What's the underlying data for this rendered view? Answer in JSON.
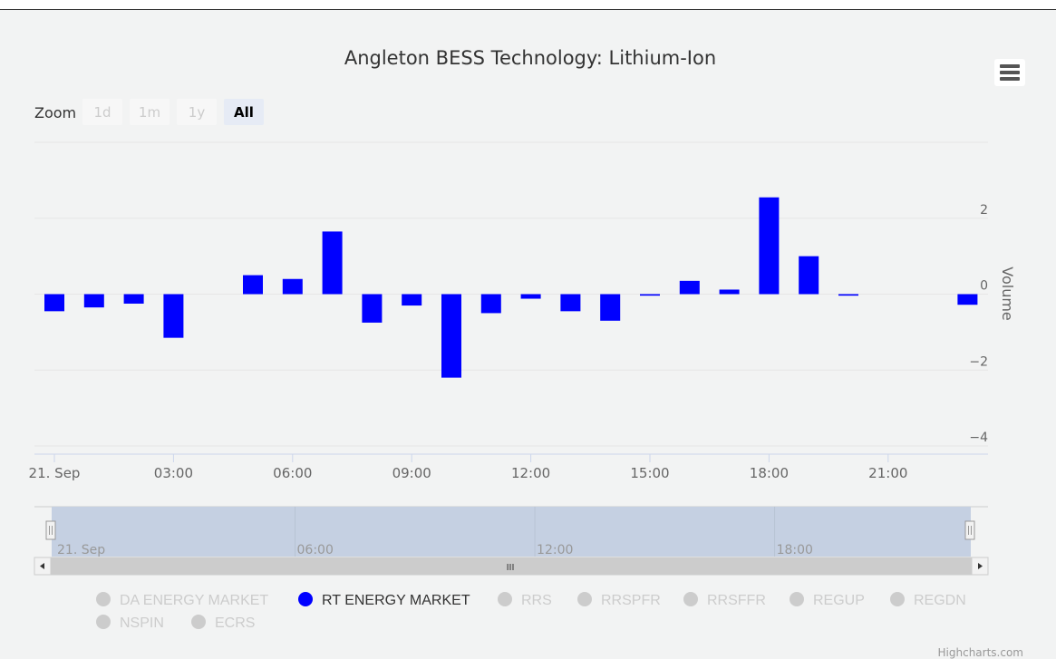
{
  "chart_data": {
    "type": "bar",
    "title": "Angleton BESS Technology: Lithium-Ion",
    "ylabel": "Volume",
    "ylim": [
      -4,
      4
    ],
    "yticks": [
      -4,
      -2,
      0,
      2
    ],
    "x_tick_labels": [
      {
        "hour": 0,
        "label": "21. Sep"
      },
      {
        "hour": 3,
        "label": "03:00"
      },
      {
        "hour": 6,
        "label": "06:00"
      },
      {
        "hour": 9,
        "label": "09:00"
      },
      {
        "hour": 12,
        "label": "12:00"
      },
      {
        "hour": 15,
        "label": "15:00"
      },
      {
        "hour": 18,
        "label": "18:00"
      },
      {
        "hour": 21,
        "label": "21:00"
      }
    ],
    "series": [
      {
        "name": "RT ENERGY MARKET",
        "color": "#0000ff",
        "hours": [
          0,
          1,
          2,
          3,
          4,
          5,
          6,
          7,
          8,
          9,
          10,
          11,
          12,
          13,
          14,
          15,
          16,
          17,
          18,
          19,
          20,
          21,
          22,
          23
        ],
        "values": [
          -0.45,
          -0.35,
          -0.25,
          -1.15,
          0,
          0.5,
          0.4,
          1.65,
          -0.75,
          -0.3,
          -2.2,
          -0.5,
          -0.12,
          -0.45,
          -0.7,
          -0.04,
          0.35,
          0.12,
          2.55,
          1.0,
          -0.04,
          0,
          0,
          -0.28
        ]
      }
    ],
    "grid": true
  },
  "zoom": {
    "label": "Zoom",
    "buttons": [
      "1d",
      "1m",
      "1y",
      "All"
    ],
    "selected": "All"
  },
  "navigator": {
    "labels": [
      {
        "hour": 0,
        "label": "21. Sep"
      },
      {
        "hour": 6,
        "label": "06:00"
      },
      {
        "hour": 12,
        "label": "12:00"
      },
      {
        "hour": 18,
        "label": "18:00"
      }
    ]
  },
  "legend": [
    {
      "label": "DA ENERGY MARKET",
      "active": false
    },
    {
      "label": "RT ENERGY MARKET",
      "active": true
    },
    {
      "label": "RRS",
      "active": false
    },
    {
      "label": "RRSPFR",
      "active": false
    },
    {
      "label": "RRSFFR",
      "active": false
    },
    {
      "label": "REGUP",
      "active": false
    },
    {
      "label": "REGDN",
      "active": false
    },
    {
      "label": "NSPIN",
      "active": false
    },
    {
      "label": "ECRS",
      "active": false
    }
  ],
  "colors": {
    "active_series": "#0000ff",
    "inactive": "#cccccc",
    "navigator_mask": "#c5d0e2"
  },
  "credits": "Highcharts.com"
}
